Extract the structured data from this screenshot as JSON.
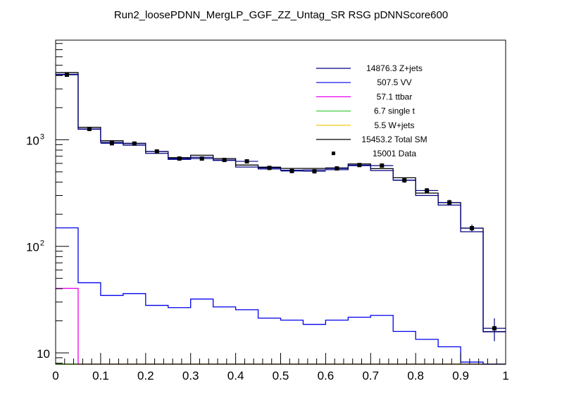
{
  "chart_data": {
    "type": "histogram",
    "title": "Run2_loosePDNN_MergLP_GGF_ZZ_Untag_SR RSG  pDNNScore600",
    "xlabel": "",
    "ylabel": "",
    "xlim": [
      0,
      1
    ],
    "ylim": [
      7.8,
      8600
    ],
    "yscale": "log",
    "grid": false,
    "legend_position": "top-right",
    "bin_edges": [
      0,
      0.05,
      0.1,
      0.15,
      0.2,
      0.25,
      0.3,
      0.35,
      0.4,
      0.45,
      0.5,
      0.55,
      0.6,
      0.65,
      0.7,
      0.75,
      0.8,
      0.85,
      0.9,
      0.95,
      1.0
    ],
    "x_tick_labels": [
      "0",
      "0.1",
      "0.2",
      "0.3",
      "0.4",
      "0.5",
      "0.6",
      "0.7",
      "0.8",
      "0.9",
      "1"
    ],
    "y_tick_labels": [
      {
        "base": "10",
        "exp": ""
      },
      {
        "base": "10",
        "exp": "2"
      },
      {
        "base": "10",
        "exp": "3"
      }
    ],
    "series": [
      {
        "name": "Z+jets",
        "legend_label": "14876.3 Z+jets",
        "color": "#000080",
        "style": "step",
        "values": [
          4110,
          1255,
          945,
          890,
          745,
          655,
          685,
          640,
          555,
          532,
          518,
          520,
          524,
          572,
          514,
          418,
          300,
          244,
          137,
          15.8
        ]
      },
      {
        "name": "VV",
        "legend_label": "507.5 VV",
        "color": "#0000ee",
        "style": "step",
        "values": [
          149,
          45.5,
          34.6,
          36,
          27.9,
          26.6,
          32,
          27,
          25.4,
          21.2,
          20.3,
          18.5,
          20.3,
          21.6,
          22.5,
          15.9,
          13.4,
          11.4,
          8.2,
          0
        ]
      },
      {
        "name": "ttbar",
        "legend_label": "57.1 ttbar",
        "color": "#ee00ee",
        "style": "step",
        "values": [
          40.3,
          0,
          0,
          0,
          0,
          0,
          0,
          0,
          0,
          0,
          0,
          0,
          0,
          0,
          0,
          0,
          0,
          0,
          0,
          0
        ]
      },
      {
        "name": "single t",
        "legend_label": "6.7 single t",
        "color": "#44cc44",
        "style": "step",
        "values": [
          0,
          0,
          0,
          0,
          0,
          0,
          0,
          0,
          0,
          0,
          0,
          0,
          0,
          0,
          0,
          0,
          0,
          0,
          0,
          0
        ]
      },
      {
        "name": "W+jets",
        "legend_label": "5.5 W+jets",
        "color": "#f5c400",
        "style": "step",
        "values": [
          0,
          0,
          0,
          0,
          0,
          0,
          0,
          0,
          0,
          0,
          0,
          0,
          0,
          0,
          0,
          0,
          0,
          0,
          0,
          0
        ]
      },
      {
        "name": "Total SM",
        "legend_label": "15453.2 Total SM",
        "color": "#000000",
        "style": "step",
        "values": [
          4266,
          1307,
          979,
          927,
          776,
          680,
          716,
          666,
          579,
          553,
          538,
          538,
          544,
          593,
          536,
          440,
          316,
          257,
          148,
          15.8
        ]
      },
      {
        "name": "Data",
        "legend_label": "15001 Data",
        "color": "#000000",
        "style": "points",
        "values": [
          4075,
          1263,
          927,
          921,
          776,
          666,
          666,
          646,
          627,
          544,
          509,
          506,
          538,
          579,
          572,
          416,
          334,
          258,
          148,
          17
        ]
      }
    ]
  }
}
